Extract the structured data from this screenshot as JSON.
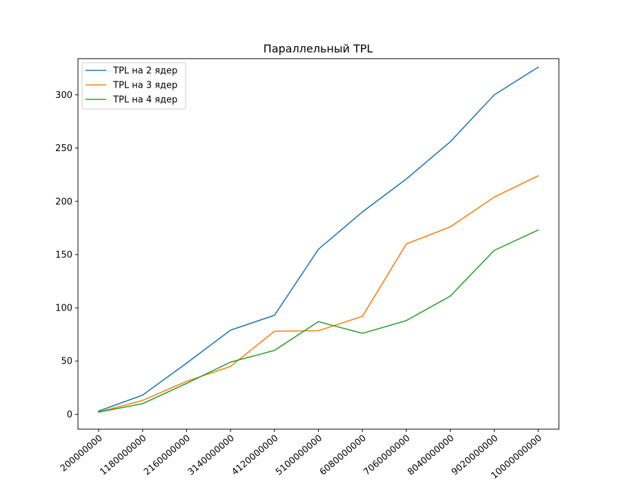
{
  "chart_data": {
    "type": "line",
    "title": "Параллельный TPL",
    "xlabel": "",
    "ylabel": "",
    "x": [
      "200000000",
      "1180000000",
      "2160000000",
      "3140000000",
      "4120000000",
      "5100000000",
      "6080000000",
      "7060000000",
      "8040000000",
      "9020000000",
      "10000000000"
    ],
    "ylim": [
      -14,
      334
    ],
    "yticks": [
      0,
      50,
      100,
      150,
      200,
      250,
      300
    ],
    "grid": false,
    "legend_position": "top-left",
    "series": [
      {
        "name": "TPL на 2 ядер",
        "color": "#1f77b4",
        "values": [
          3,
          18,
          48,
          79,
          93,
          155,
          190,
          221,
          256,
          300,
          326
        ]
      },
      {
        "name": "TPL на 3 ядер",
        "color": "#ff7f0e",
        "values": [
          2,
          13,
          31,
          45,
          78,
          78.5,
          92,
          160,
          176,
          204,
          224
        ]
      },
      {
        "name": "TPL на 4 ядер",
        "color": "#2ca02c",
        "values": [
          2,
          10,
          29,
          49,
          60,
          87,
          76,
          88,
          111,
          154,
          173
        ]
      }
    ]
  }
}
